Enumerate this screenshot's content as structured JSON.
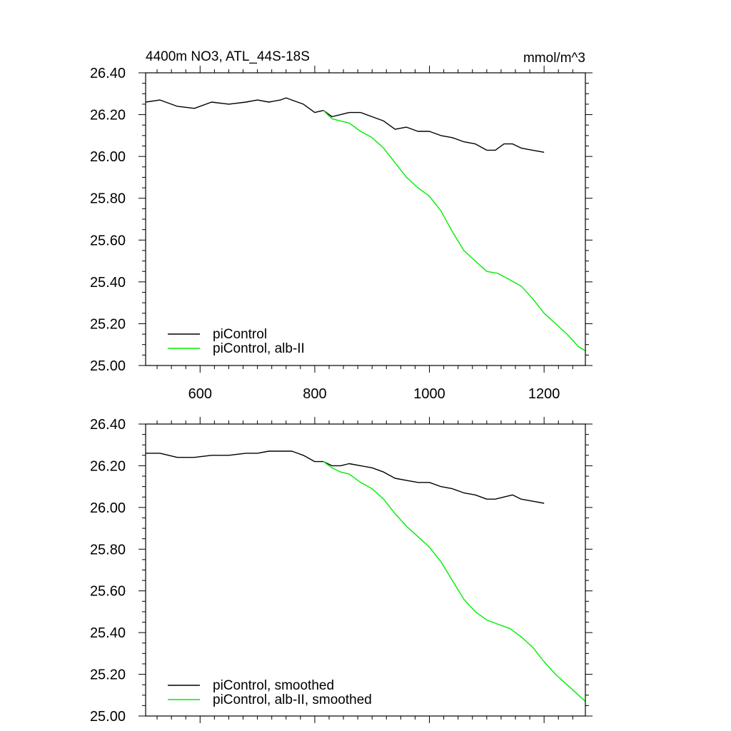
{
  "title_left": "4400m NO3, ATL_44S-18S",
  "title_right": "mmol/m^3",
  "colors": {
    "control": "#000000",
    "alb": "#00ee00"
  },
  "chart_data": [
    {
      "type": "line",
      "xlim": [
        505,
        1272
      ],
      "ylim": [
        25.0,
        26.4
      ],
      "x_ticks": [
        600,
        800,
        1000,
        1200
      ],
      "x_tick_labels": [
        "600",
        "800",
        "1000",
        "1200"
      ],
      "y_ticks": [
        25.0,
        25.2,
        25.4,
        25.6,
        25.8,
        26.0,
        26.2,
        26.4
      ],
      "y_tick_labels": [
        "25.00",
        "25.20",
        "25.40",
        "25.60",
        "25.80",
        "26.00",
        "26.20",
        "26.40"
      ],
      "legend_position": "bottom-left",
      "series": [
        {
          "name": "piControl",
          "color": "#000000",
          "x": [
            505,
            530,
            560,
            590,
            620,
            650,
            680,
            700,
            720,
            740,
            750,
            760,
            770,
            780,
            800,
            815,
            830,
            845,
            860,
            880,
            900,
            920,
            940,
            960,
            980,
            1000,
            1020,
            1040,
            1060,
            1080,
            1100,
            1115,
            1130,
            1145,
            1160,
            1180,
            1200
          ],
          "y": [
            26.26,
            26.27,
            26.24,
            26.23,
            26.26,
            26.25,
            26.26,
            26.27,
            26.26,
            26.27,
            26.28,
            26.27,
            26.26,
            26.25,
            26.21,
            26.22,
            26.19,
            26.2,
            26.21,
            26.21,
            26.19,
            26.17,
            26.13,
            26.14,
            26.12,
            26.12,
            26.1,
            26.09,
            26.07,
            26.06,
            26.03,
            26.03,
            26.06,
            26.06,
            26.04,
            26.03,
            26.02
          ]
        },
        {
          "name": "piControl, alb-II",
          "color": "#00ee00",
          "x": [
            815,
            830,
            845,
            860,
            880,
            900,
            920,
            940,
            960,
            980,
            1000,
            1020,
            1040,
            1060,
            1080,
            1100,
            1120,
            1140,
            1160,
            1180,
            1200,
            1220,
            1240,
            1260,
            1272
          ],
          "y": [
            26.22,
            26.18,
            26.17,
            26.16,
            26.12,
            26.09,
            26.04,
            25.97,
            25.9,
            25.85,
            25.81,
            25.74,
            25.64,
            25.55,
            25.5,
            25.45,
            25.44,
            25.41,
            25.38,
            25.32,
            25.25,
            25.2,
            25.15,
            25.09,
            25.07
          ]
        }
      ]
    },
    {
      "type": "line",
      "xlim": [
        505,
        1272
      ],
      "ylim": [
        25.0,
        26.4
      ],
      "x_ticks": [
        600,
        800,
        1000,
        1200
      ],
      "x_tick_labels": [],
      "y_ticks": [
        25.0,
        25.2,
        25.4,
        25.6,
        25.8,
        26.0,
        26.2,
        26.4
      ],
      "y_tick_labels": [
        "25.00",
        "25.20",
        "25.40",
        "25.60",
        "25.80",
        "26.00",
        "26.20",
        "26.40"
      ],
      "legend_position": "bottom-left",
      "series": [
        {
          "name": "piControl, smoothed",
          "color": "#000000",
          "x": [
            505,
            530,
            560,
            590,
            620,
            650,
            680,
            700,
            720,
            740,
            750,
            760,
            770,
            780,
            800,
            815,
            830,
            845,
            860,
            880,
            900,
            920,
            940,
            960,
            980,
            1000,
            1020,
            1040,
            1060,
            1080,
            1100,
            1115,
            1130,
            1145,
            1160,
            1180,
            1200
          ],
          "y": [
            26.26,
            26.26,
            26.24,
            26.24,
            26.25,
            26.25,
            26.26,
            26.26,
            26.27,
            26.27,
            26.27,
            26.27,
            26.26,
            26.25,
            26.22,
            26.22,
            26.2,
            26.2,
            26.21,
            26.2,
            26.19,
            26.17,
            26.14,
            26.13,
            26.12,
            26.12,
            26.1,
            26.09,
            26.07,
            26.06,
            26.04,
            26.04,
            26.05,
            26.06,
            26.04,
            26.03,
            26.02
          ]
        },
        {
          "name": "piControl, alb-II, smoothed",
          "color": "#00ee00",
          "x": [
            815,
            830,
            845,
            860,
            880,
            900,
            920,
            940,
            960,
            980,
            1000,
            1020,
            1040,
            1060,
            1080,
            1100,
            1120,
            1140,
            1160,
            1180,
            1200,
            1220,
            1240,
            1260,
            1272
          ],
          "y": [
            26.22,
            26.19,
            26.17,
            26.16,
            26.12,
            26.09,
            26.04,
            25.97,
            25.91,
            25.86,
            25.81,
            25.74,
            25.65,
            25.56,
            25.5,
            25.46,
            25.44,
            25.42,
            25.38,
            25.33,
            25.26,
            25.2,
            25.15,
            25.1,
            25.07
          ]
        }
      ]
    }
  ]
}
